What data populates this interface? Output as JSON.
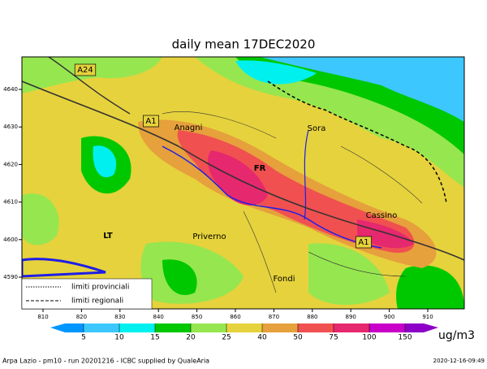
{
  "title": "daily mean 17DEC2020",
  "map": {
    "xticks": [
      810,
      820,
      830,
      840,
      850,
      860,
      870,
      880,
      890,
      900,
      910
    ],
    "yticks": [
      4640,
      4630,
      4620,
      4610,
      4600,
      4590
    ],
    "places": [
      "A24",
      "A1",
      "Anagni",
      "Sora",
      "FR",
      "Cassino",
      "LT",
      "Priverno",
      "A1",
      "Fondi"
    ],
    "legend": [
      "limiti provinciali",
      "limiti regionali"
    ]
  },
  "colorbar": {
    "levels": [
      5,
      10,
      15,
      20,
      25,
      40,
      50,
      75,
      100,
      150
    ],
    "colors": [
      "#0096ff",
      "#3cc8ff",
      "#00f0f0",
      "#00c800",
      "#96e650",
      "#e6d23c",
      "#e6a03c",
      "#f05050",
      "#e6286e",
      "#c800c8",
      "#8c00c8"
    ],
    "unit": "ug/m3"
  },
  "footer": {
    "left": "Arpa Lazio - pm10 - run 20201216 - ICBC supplied by QualeAria",
    "right": "2020-12-16-09:49"
  }
}
